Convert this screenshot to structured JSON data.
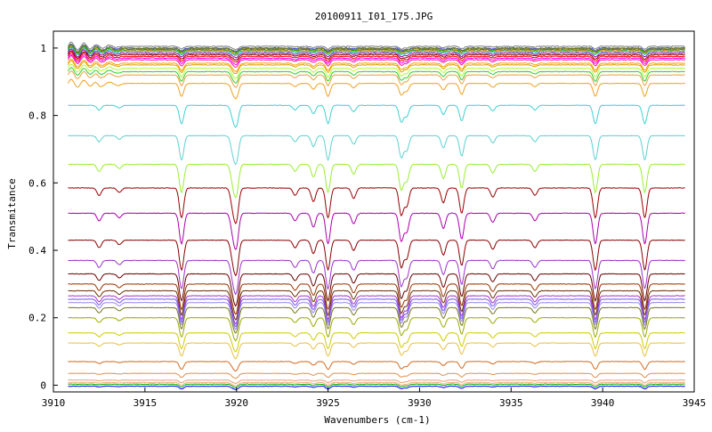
{
  "chart_data": {
    "type": "line",
    "title": "20100911_I01_175.JPG",
    "xlabel": "Wavenumbers (cm-1)",
    "ylabel": "Transmitance",
    "xlim": [
      3910,
      3945
    ],
    "ylim": [
      -0.02,
      1.05
    ],
    "x_ticks": [
      3910,
      3915,
      3920,
      3925,
      3930,
      3935,
      3940,
      3945
    ],
    "y_ticks": [
      0,
      0.2,
      0.4,
      0.6,
      0.8,
      1
    ],
    "y_tick_labels": [
      "0",
      "0.2",
      "0.4",
      "0.6",
      "0.8",
      "1"
    ],
    "x_range": [
      3910.8,
      3944.5
    ],
    "grid": false,
    "legend": "none",
    "absorption_lines": [
      {
        "x": 3912.5,
        "depth": 0.25
      },
      {
        "x": 3913.6,
        "depth": 0.15
      },
      {
        "x": 3917.0,
        "depth": 1.0
      },
      {
        "x": 3919.8,
        "depth": 0.6
      },
      {
        "x": 3920.0,
        "depth": 1.0
      },
      {
        "x": 3923.2,
        "depth": 0.25
      },
      {
        "x": 3924.2,
        "depth": 0.45
      },
      {
        "x": 3925.0,
        "depth": 1.0
      },
      {
        "x": 3926.4,
        "depth": 0.35
      },
      {
        "x": 3929.0,
        "depth": 0.9
      },
      {
        "x": 3929.3,
        "depth": 0.6
      },
      {
        "x": 3931.3,
        "depth": 0.5
      },
      {
        "x": 3932.3,
        "depth": 0.85
      },
      {
        "x": 3934.0,
        "depth": 0.3
      },
      {
        "x": 3936.3,
        "depth": 0.25
      },
      {
        "x": 3939.6,
        "depth": 1.0
      },
      {
        "x": 3942.3,
        "depth": 1.0
      }
    ],
    "series": [
      {
        "level": 1.005,
        "color": "#808080"
      },
      {
        "level": 1.0,
        "color": "#4040ff"
      },
      {
        "level": 0.998,
        "color": "#808000"
      },
      {
        "level": 0.995,
        "color": "#00a000"
      },
      {
        "level": 0.992,
        "color": "#ff8000"
      },
      {
        "level": 0.99,
        "color": "#00c0c0"
      },
      {
        "level": 0.985,
        "color": "#a000a0"
      },
      {
        "level": 0.98,
        "color": "#800000"
      },
      {
        "level": 0.975,
        "color": "#ff0000"
      },
      {
        "level": 0.97,
        "color": "#ff00ff"
      },
      {
        "level": 0.965,
        "color": "#ff1493"
      },
      {
        "level": 0.955,
        "color": "#ffa500"
      },
      {
        "level": 0.95,
        "color": "#e0a000"
      },
      {
        "level": 0.94,
        "color": "#adff2f"
      },
      {
        "level": 0.93,
        "color": "#32cd32"
      },
      {
        "level": 0.92,
        "color": "#f0a040"
      },
      {
        "level": 0.895,
        "color": "#f0a020"
      },
      {
        "level": 0.83,
        "color": "#40d0d0"
      },
      {
        "level": 0.74,
        "color": "#60d0d0"
      },
      {
        "level": 0.655,
        "color": "#99ee33"
      },
      {
        "level": 0.585,
        "color": "#990000"
      },
      {
        "level": 0.51,
        "color": "#aa00aa"
      },
      {
        "level": 0.43,
        "color": "#880000"
      },
      {
        "level": 0.37,
        "color": "#9933cc"
      },
      {
        "level": 0.33,
        "color": "#660000"
      },
      {
        "level": 0.3,
        "color": "#993300"
      },
      {
        "level": 0.28,
        "color": "#663300"
      },
      {
        "level": 0.265,
        "color": "#aa33cc"
      },
      {
        "level": 0.255,
        "color": "#7755ee"
      },
      {
        "level": 0.245,
        "color": "#9988ee"
      },
      {
        "level": 0.23,
        "color": "#777722"
      },
      {
        "level": 0.2,
        "color": "#99aa00"
      },
      {
        "level": 0.155,
        "color": "#cccc00"
      },
      {
        "level": 0.125,
        "color": "#e8c040"
      },
      {
        "level": 0.07,
        "color": "#d2691e"
      },
      {
        "level": 0.035,
        "color": "#e09050"
      },
      {
        "level": 0.015,
        "color": "#e8a070"
      },
      {
        "level": 0.008,
        "color": "#f0b080"
      },
      {
        "level": 0.003,
        "color": "#00aa00"
      },
      {
        "level": -0.003,
        "color": "#0000ff"
      }
    ]
  }
}
